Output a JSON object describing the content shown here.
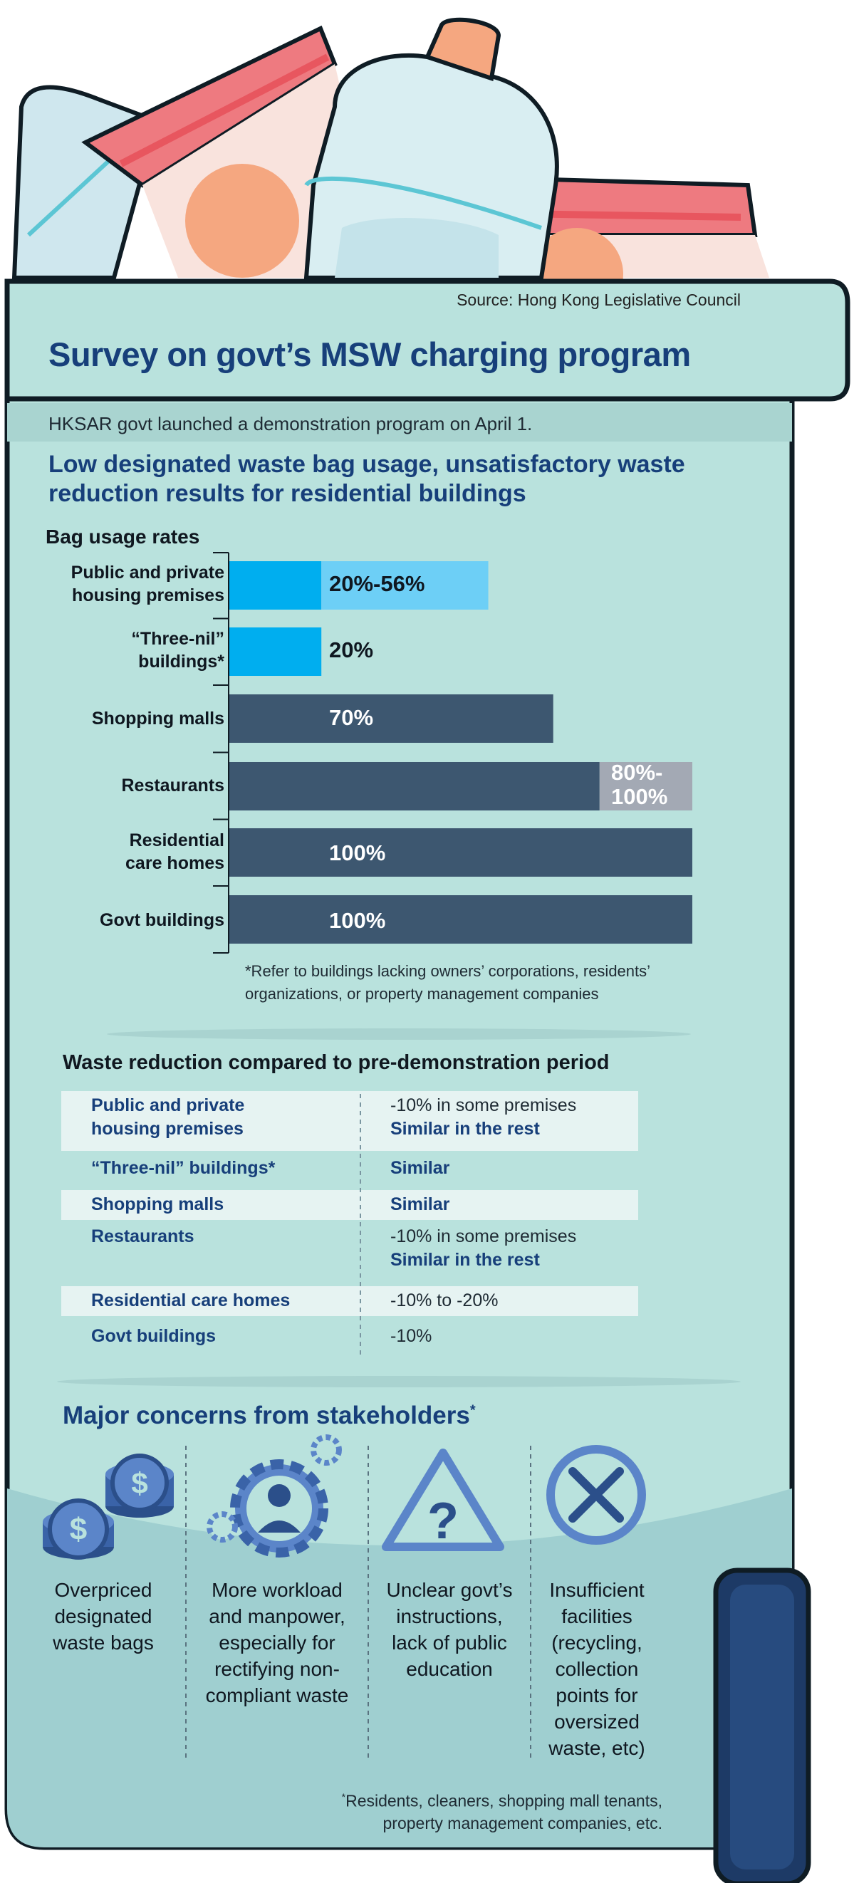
{
  "source": "Source: Hong Kong Legislative Council",
  "title": "Survey on govt’s MSW charging program",
  "subtitle": "HKSAR govt launched a demonstration program on April 1.",
  "headline_line1": "Low designated waste bag usage, unsatisfactory waste",
  "headline_line2": "reduction results for residential buildings",
  "bag_section_label": "Bag usage rates",
  "chart_data": {
    "type": "bar",
    "orientation": "horizontal",
    "xlim": [
      0,
      100
    ],
    "categories": [
      [
        "Public and private",
        "housing premises"
      ],
      [
        "“Three-nil”",
        "buildings*"
      ],
      [
        "Shopping malls"
      ],
      [
        "Restaurants"
      ],
      [
        "Residential",
        "care homes"
      ],
      [
        "Govt buildings"
      ]
    ],
    "ranges": [
      {
        "min": 20,
        "max": 56,
        "label": "20%-56%"
      },
      {
        "min": 20,
        "max": 20,
        "label": "20%"
      },
      {
        "min": 70,
        "max": 70,
        "label": "70%"
      },
      {
        "min": 80,
        "max": 100,
        "label_line1": "80%-",
        "label_line2": "100%"
      },
      {
        "min": 100,
        "max": 100,
        "label": "100%"
      },
      {
        "min": 100,
        "max": 100,
        "label": "100%"
      }
    ],
    "colors": {
      "housing_min": "#00aeef",
      "housing_range": "#6dcff6",
      "nonhousing_min": "#3d5770",
      "nonhousing_range": "#a3a9b4"
    }
  },
  "chart_footnote_line1": "*Refer to buildings lacking owners’ corporations, residents’",
  "chart_footnote_line2": "organizations, or property management companies",
  "waste_section_label": "Waste reduction compared to pre-demonstration period",
  "waste_table": [
    {
      "cat1": "Public and private",
      "cat2": "housing premises",
      "val1": "-10% in some premises",
      "val2": "Similar in the rest"
    },
    {
      "cat1": "“Three-nil” buildings*",
      "cat2": "",
      "val1": "",
      "val2": "Similar"
    },
    {
      "cat1": "Shopping malls",
      "cat2": "",
      "val1": "",
      "val2": "Similar"
    },
    {
      "cat1": "Restaurants",
      "cat2": "",
      "val1": "-10% in some premises",
      "val2": "Similar in the rest"
    },
    {
      "cat1": "Residential care homes",
      "cat2": "",
      "val1": "-10% to -20%",
      "val2": ""
    },
    {
      "cat1": "Govt buildings",
      "cat2": "",
      "val1": "-10%",
      "val2": ""
    }
  ],
  "concerns_title": "Major concerns from stakeholders",
  "concerns_title_mark": "*",
  "concerns": [
    {
      "icon": "coins-icon",
      "lines": [
        "Overpriced",
        "designated",
        "waste bags"
      ]
    },
    {
      "icon": "worker-gears-icon",
      "lines": [
        "More workload",
        "and manpower,",
        "especially for",
        "rectifying non-",
        "compliant waste"
      ]
    },
    {
      "icon": "warning-question-icon",
      "lines": [
        "Unclear govt’s",
        "instructions,",
        "lack of public",
        "education"
      ]
    },
    {
      "icon": "cross-circle-icon",
      "lines": [
        "Insufficient",
        "facilities",
        "(recycling,",
        "collection",
        "points for",
        "oversized",
        "waste, etc)"
      ]
    }
  ],
  "stakeholders_mark": "*",
  "stakeholders_line1": "Residents, cleaners, shopping mall tenants,",
  "stakeholders_line2": "property management companies, etc."
}
